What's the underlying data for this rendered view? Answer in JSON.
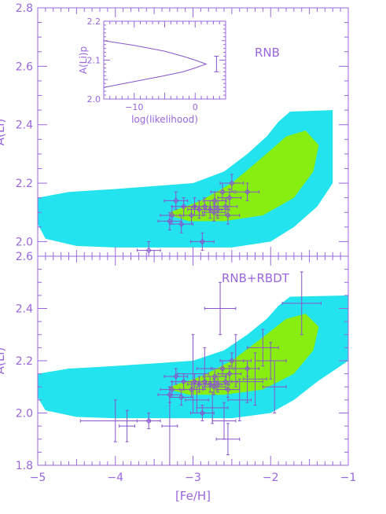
{
  "colors": {
    "axis": "#9966dd",
    "data": "#8855cc",
    "outer_region": "#22e3ee",
    "inner_region": "#88ee11"
  },
  "chart_data": [
    {
      "type": "scatter",
      "name": "top",
      "label": "RNB",
      "xlim": [
        -5,
        -1
      ],
      "ylim": [
        1.95,
        2.8
      ],
      "yticks": [
        2.0,
        2.2,
        2.4,
        2.6,
        2.8
      ],
      "ylabel": "A(Li)",
      "outer_region": [
        [
          -5,
          2.15
        ],
        [
          -4.6,
          2.17
        ],
        [
          -4,
          2.18
        ],
        [
          -3.5,
          2.19
        ],
        [
          -3,
          2.2
        ],
        [
          -2.6,
          2.24
        ],
        [
          -2.3,
          2.3
        ],
        [
          -2.05,
          2.36
        ],
        [
          -1.9,
          2.41
        ],
        [
          -1.75,
          2.445
        ],
        [
          -1.2,
          2.45
        ],
        [
          -1.2,
          2.2
        ],
        [
          -1.4,
          2.12
        ],
        [
          -1.7,
          2.05
        ],
        [
          -2,
          2.0
        ],
        [
          -2.5,
          1.98
        ],
        [
          -3,
          1.98
        ],
        [
          -3.5,
          1.98
        ],
        [
          -4,
          1.98
        ],
        [
          -4.5,
          1.985
        ],
        [
          -4.9,
          2.01
        ],
        [
          -5,
          2.06
        ]
      ],
      "inner_region": [
        [
          -3.3,
          2.1
        ],
        [
          -2.9,
          2.14
        ],
        [
          -2.5,
          2.2
        ],
        [
          -2.1,
          2.29
        ],
        [
          -1.8,
          2.36
        ],
        [
          -1.55,
          2.38
        ],
        [
          -1.38,
          2.33
        ],
        [
          -1.45,
          2.24
        ],
        [
          -1.7,
          2.15
        ],
        [
          -2.1,
          2.09
        ],
        [
          -2.6,
          2.07
        ],
        [
          -3.05,
          2.07
        ],
        [
          -3.3,
          2.09
        ]
      ],
      "points": [
        {
          "x": -3.57,
          "y": 1.97,
          "xerr": 0.15,
          "yerr": 0.03
        },
        {
          "x": -3.3,
          "y": 2.07,
          "xerr": 0.15,
          "yerr": 0.03
        },
        {
          "x": -3.27,
          "y": 2.09,
          "xerr": 0.15,
          "yerr": 0.03
        },
        {
          "x": -3.22,
          "y": 2.14,
          "xerr": 0.15,
          "yerr": 0.03
        },
        {
          "x": -3.15,
          "y": 2.06,
          "xerr": 0.15,
          "yerr": 0.03
        },
        {
          "x": -3.12,
          "y": 2.12,
          "xerr": 0.15,
          "yerr": 0.03
        },
        {
          "x": -3.02,
          "y": 2.09,
          "xerr": 0.15,
          "yerr": 0.03
        },
        {
          "x": -2.98,
          "y": 2.12,
          "xerr": 0.15,
          "yerr": 0.03
        },
        {
          "x": -2.92,
          "y": 2.11,
          "xerr": 0.15,
          "yerr": 0.03
        },
        {
          "x": -2.85,
          "y": 2.12,
          "xerr": 0.15,
          "yerr": 0.03
        },
        {
          "x": -2.88,
          "y": 2.0,
          "xerr": 0.15,
          "yerr": 0.03
        },
        {
          "x": -2.78,
          "y": 2.11,
          "xerr": 0.15,
          "yerr": 0.03
        },
        {
          "x": -2.73,
          "y": 2.1,
          "xerr": 0.15,
          "yerr": 0.03
        },
        {
          "x": -2.72,
          "y": 2.14,
          "xerr": 0.15,
          "yerr": 0.03
        },
        {
          "x": -2.68,
          "y": 2.11,
          "xerr": 0.15,
          "yerr": 0.03
        },
        {
          "x": -2.62,
          "y": 2.17,
          "xerr": 0.15,
          "yerr": 0.03
        },
        {
          "x": -2.58,
          "y": 2.12,
          "xerr": 0.15,
          "yerr": 0.03
        },
        {
          "x": -2.55,
          "y": 2.09,
          "xerr": 0.15,
          "yerr": 0.03
        },
        {
          "x": -2.53,
          "y": 2.15,
          "xerr": 0.15,
          "yerr": 0.03
        },
        {
          "x": -2.5,
          "y": 2.2,
          "xerr": 0.15,
          "yerr": 0.03
        },
        {
          "x": -2.3,
          "y": 2.17,
          "xerr": 0.15,
          "yerr": 0.03
        }
      ],
      "inset": {
        "xlabel": "log(likelihood)",
        "ylabel": "A(Li)p",
        "xlim": [
          -15,
          5
        ],
        "ylim": [
          2.0,
          2.2
        ],
        "xticks": [
          -10,
          0
        ],
        "yticks": [
          2.0,
          2.1,
          2.2
        ],
        "curve": [
          [
            -15,
            2.03
          ],
          [
            -10,
            2.045
          ],
          [
            -5,
            2.06
          ],
          [
            -2,
            2.07
          ],
          [
            0,
            2.08
          ],
          [
            1.8,
            2.09
          ],
          [
            0,
            2.1
          ],
          [
            -2,
            2.11
          ],
          [
            -5,
            2.123
          ],
          [
            -10,
            2.138
          ],
          [
            -15,
            2.15
          ]
        ],
        "errorbar": {
          "x": 3.5,
          "y": 2.09,
          "yerr": 0.02
        }
      }
    },
    {
      "type": "scatter",
      "name": "bottom",
      "label": "RNB+RBDT",
      "xlim": [
        -5,
        -1
      ],
      "ylim": [
        1.8,
        2.6
      ],
      "yticks": [
        1.8,
        2.0,
        2.2,
        2.4,
        2.6
      ],
      "xticks": [
        -5,
        -4,
        -3,
        -2,
        -1
      ],
      "xlabel": "[Fe/H]",
      "ylabel": "A(Li)",
      "outer_region": [
        [
          -5,
          2.15
        ],
        [
          -4.6,
          2.17
        ],
        [
          -4,
          2.18
        ],
        [
          -3.5,
          2.19
        ],
        [
          -3,
          2.2
        ],
        [
          -2.6,
          2.24
        ],
        [
          -2.3,
          2.3
        ],
        [
          -2.05,
          2.36
        ],
        [
          -1.9,
          2.41
        ],
        [
          -1.75,
          2.445
        ],
        [
          -1.0,
          2.45
        ],
        [
          -1.0,
          2.2
        ],
        [
          -1.4,
          2.12
        ],
        [
          -1.7,
          2.05
        ],
        [
          -2,
          2.0
        ],
        [
          -2.5,
          1.98
        ],
        [
          -3,
          1.98
        ],
        [
          -3.5,
          1.98
        ],
        [
          -4,
          1.98
        ],
        [
          -4.5,
          1.985
        ],
        [
          -4.9,
          2.01
        ],
        [
          -5,
          2.06
        ]
      ],
      "inner_region": [
        [
          -3.3,
          2.1
        ],
        [
          -2.9,
          2.14
        ],
        [
          -2.5,
          2.2
        ],
        [
          -2.1,
          2.29
        ],
        [
          -1.8,
          2.36
        ],
        [
          -1.55,
          2.38
        ],
        [
          -1.38,
          2.33
        ],
        [
          -1.45,
          2.24
        ],
        [
          -1.7,
          2.15
        ],
        [
          -2.1,
          2.09
        ],
        [
          -2.6,
          2.07
        ],
        [
          -3.05,
          2.07
        ],
        [
          -3.3,
          2.09
        ]
      ],
      "points": [
        {
          "x": -3.57,
          "y": 1.97,
          "xerr": 0.15,
          "yerr": 0.03,
          "marker": true
        },
        {
          "x": -3.3,
          "y": 2.07,
          "xerr": 0.15,
          "yerr": 0.03,
          "marker": true
        },
        {
          "x": -3.27,
          "y": 2.09,
          "xerr": 0.15,
          "yerr": 0.03,
          "marker": true
        },
        {
          "x": -3.22,
          "y": 2.14,
          "xerr": 0.15,
          "yerr": 0.03,
          "marker": true
        },
        {
          "x": -3.15,
          "y": 2.06,
          "xerr": 0.15,
          "yerr": 0.03,
          "marker": true
        },
        {
          "x": -3.12,
          "y": 2.12,
          "xerr": 0.15,
          "yerr": 0.03,
          "marker": true
        },
        {
          "x": -3.02,
          "y": 2.09,
          "xerr": 0.15,
          "yerr": 0.03,
          "marker": true
        },
        {
          "x": -2.98,
          "y": 2.12,
          "xerr": 0.15,
          "yerr": 0.03,
          "marker": true
        },
        {
          "x": -2.92,
          "y": 2.11,
          "xerr": 0.15,
          "yerr": 0.03,
          "marker": true
        },
        {
          "x": -2.85,
          "y": 2.12,
          "xerr": 0.15,
          "yerr": 0.03,
          "marker": true
        },
        {
          "x": -2.88,
          "y": 2.0,
          "xerr": 0.15,
          "yerr": 0.03,
          "marker": true
        },
        {
          "x": -2.78,
          "y": 2.11,
          "xerr": 0.15,
          "yerr": 0.03,
          "marker": true
        },
        {
          "x": -2.73,
          "y": 2.1,
          "xerr": 0.15,
          "yerr": 0.03,
          "marker": true
        },
        {
          "x": -2.72,
          "y": 2.14,
          "xerr": 0.15,
          "yerr": 0.03,
          "marker": true
        },
        {
          "x": -2.68,
          "y": 2.11,
          "xerr": 0.15,
          "yerr": 0.03,
          "marker": true
        },
        {
          "x": -2.62,
          "y": 2.17,
          "xerr": 0.15,
          "yerr": 0.03,
          "marker": true
        },
        {
          "x": -2.58,
          "y": 2.12,
          "xerr": 0.15,
          "yerr": 0.03,
          "marker": true
        },
        {
          "x": -2.55,
          "y": 2.09,
          "xerr": 0.15,
          "yerr": 0.03,
          "marker": true
        },
        {
          "x": -2.53,
          "y": 2.15,
          "xerr": 0.15,
          "yerr": 0.03,
          "marker": true
        },
        {
          "x": -2.5,
          "y": 2.2,
          "xerr": 0.15,
          "yerr": 0.03,
          "marker": true
        },
        {
          "x": -2.3,
          "y": 2.17,
          "xerr": 0.15,
          "yerr": 0.03,
          "marker": true
        },
        {
          "x": -4.0,
          "y": 1.97,
          "xerr": 0.45,
          "yerr": 0.08
        },
        {
          "x": -3.85,
          "y": 1.95,
          "xerr": 0.1,
          "yerr": 0.06
        },
        {
          "x": -3.3,
          "y": 1.95,
          "xerr": 0.1,
          "yerr": 0.15
        },
        {
          "x": -3.0,
          "y": 2.15,
          "xerr": 0.2,
          "yerr": 0.15
        },
        {
          "x": -2.85,
          "y": 2.17,
          "xerr": 0.1,
          "yerr": 0.08
        },
        {
          "x": -2.95,
          "y": 2.05,
          "xerr": 0.15,
          "yerr": 0.05
        },
        {
          "x": -2.75,
          "y": 2.02,
          "xerr": 0.2,
          "yerr": 0.06
        },
        {
          "x": -2.6,
          "y": 1.97,
          "xerr": 0.15,
          "yerr": 0.07
        },
        {
          "x": -2.55,
          "y": 1.9,
          "xerr": 0.15,
          "yerr": 0.06
        },
        {
          "x": -2.45,
          "y": 2.2,
          "xerr": 0.2,
          "yerr": 0.1
        },
        {
          "x": -2.4,
          "y": 2.05,
          "xerr": 0.15,
          "yerr": 0.08
        },
        {
          "x": -2.3,
          "y": 2.12,
          "xerr": 0.2,
          "yerr": 0.08
        },
        {
          "x": -2.2,
          "y": 2.13,
          "xerr": 0.15,
          "yerr": 0.1
        },
        {
          "x": -2.1,
          "y": 2.25,
          "xerr": 0.2,
          "yerr": 0.07
        },
        {
          "x": -2.0,
          "y": 2.2,
          "xerr": 0.2,
          "yerr": 0.07
        },
        {
          "x": -1.95,
          "y": 2.1,
          "xerr": 0.15,
          "yerr": 0.1
        },
        {
          "x": -1.6,
          "y": 2.42,
          "xerr": 0.25,
          "yerr": 0.12
        },
        {
          "x": -2.65,
          "y": 2.4,
          "xerr": 0.2,
          "yerr": 0.1
        }
      ]
    }
  ]
}
